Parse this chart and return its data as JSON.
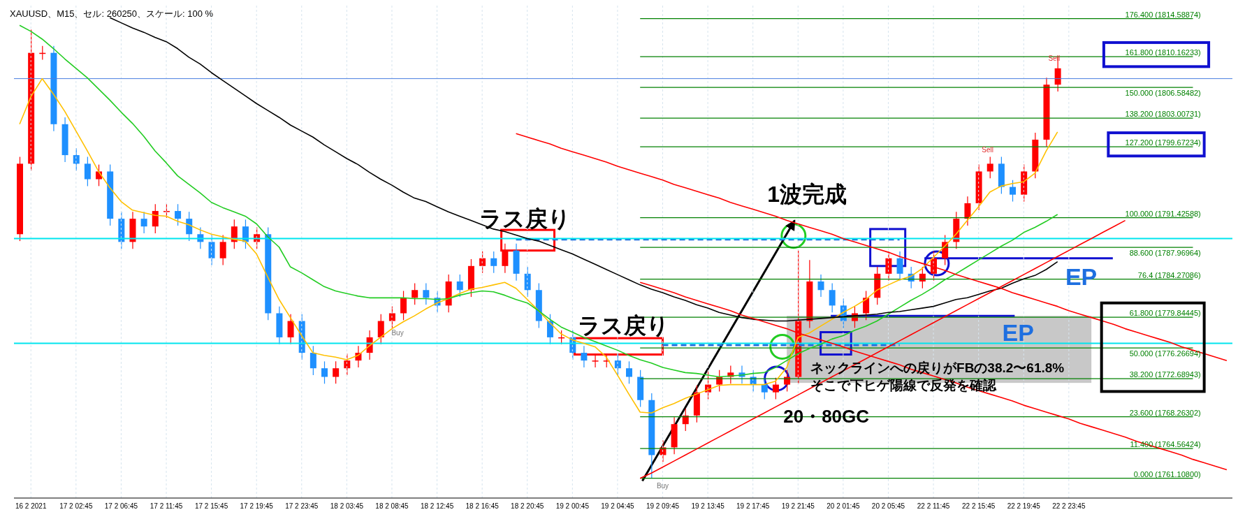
{
  "chart_data": {
    "type": "candlestick",
    "title": "XAUUSD、M15、セル: 260250、スケール: 100 %",
    "categories": [
      null,
      "16 2 2021",
      null,
      null,
      null,
      "17 2 02:45",
      null,
      null,
      null,
      "17 2 06:45",
      null,
      null,
      null,
      "17 2 11:45",
      null,
      null,
      null,
      "17 2 15:45",
      null,
      null,
      null,
      "17 2 19:45",
      null,
      null,
      null,
      "17 2 23:45",
      null,
      null,
      null,
      "18 2 03:45",
      null,
      null,
      null,
      "18 2 08:45",
      null,
      null,
      null,
      "18 2 12:45",
      null,
      null,
      null,
      "18 2 16:45",
      null,
      null,
      null,
      "18 2 20:45",
      null,
      null,
      null,
      "19 2 00:45",
      null,
      null,
      null,
      "19 2 04:45",
      null,
      null,
      null,
      "19 2 09:45",
      null,
      null,
      null,
      "19 2 13:45",
      null,
      null,
      null,
      "19 2 17:45",
      null,
      null,
      null,
      "19 2 21:45",
      null,
      null,
      null,
      "20 2 01:45",
      null,
      null,
      null,
      "20 2 05:45",
      null,
      null,
      null,
      "22 2 11:45",
      null,
      null,
      null,
      "22 2 15:45",
      null,
      null,
      null,
      "22 2 19:45",
      null,
      null,
      null,
      "22 2 23:45",
      null,
      null,
      null,
      null,
      null,
      null,
      null,
      null,
      null,
      null,
      null,
      null,
      null,
      null
    ],
    "ohlc": [
      [
        1789.5,
        1798.5,
        1788.7,
        1797.7
      ],
      [
        1797.7,
        1813.3,
        1796.9,
        1810.6
      ],
      [
        1810.6,
        1811.4,
        1809.8,
        1810.6
      ],
      [
        1810.6,
        1811.4,
        1801.5,
        1802.3
      ],
      [
        1802.3,
        1803.1,
        1797.9,
        1798.7
      ],
      [
        1798.7,
        1799.5,
        1796.9,
        1797.7
      ],
      [
        1797.7,
        1798.5,
        1795.1,
        1795.9
      ],
      [
        1795.9,
        1797.6,
        1795.1,
        1796.8
      ],
      [
        1796.8,
        1797.6,
        1790.5,
        1791.3
      ],
      [
        1791.3,
        1792.1,
        1787.8,
        1788.6
      ],
      [
        1788.6,
        1792.1,
        1787.8,
        1791.3
      ],
      [
        1791.3,
        1792.1,
        1789.6,
        1790.4
      ],
      [
        1790.4,
        1793.0,
        1789.6,
        1792.2
      ],
      [
        1792.2,
        1793.0,
        1791.4,
        1792.2
      ],
      [
        1792.2,
        1793.0,
        1790.5,
        1791.3
      ],
      [
        1791.3,
        1792.1,
        1788.7,
        1789.5
      ],
      [
        1789.5,
        1790.3,
        1787.8,
        1788.6
      ],
      [
        1788.6,
        1789.4,
        1785.9,
        1786.7
      ],
      [
        1786.7,
        1789.4,
        1785.9,
        1788.6
      ],
      [
        1788.6,
        1791.2,
        1787.8,
        1790.4
      ],
      [
        1790.4,
        1791.2,
        1787.8,
        1788.6
      ],
      [
        1788.6,
        1790.3,
        1787.8,
        1789.5
      ],
      [
        1789.5,
        1790.3,
        1779.5,
        1780.3
      ],
      [
        1780.3,
        1781.1,
        1776.7,
        1777.5
      ],
      [
        1777.5,
        1780.2,
        1776.7,
        1779.4
      ],
      [
        1779.4,
        1780.2,
        1774.9,
        1775.7
      ],
      [
        1775.7,
        1776.5,
        1773.1,
        1773.9
      ],
      [
        1773.9,
        1774.7,
        1772.1,
        1772.9
      ],
      [
        1772.9,
        1774.7,
        1772.1,
        1773.9
      ],
      [
        1773.9,
        1775.6,
        1773.1,
        1774.8
      ],
      [
        1774.8,
        1776.5,
        1774.0,
        1775.7
      ],
      [
        1775.7,
        1778.3,
        1774.9,
        1777.5
      ],
      [
        1777.5,
        1780.2,
        1776.7,
        1779.4
      ],
      [
        1779.4,
        1781.1,
        1778.6,
        1780.3
      ],
      [
        1780.3,
        1782.9,
        1779.5,
        1782.1
      ],
      [
        1782.1,
        1783.8,
        1781.3,
        1783.0
      ],
      [
        1783.0,
        1783.8,
        1781.3,
        1782.1
      ],
      [
        1782.1,
        1782.9,
        1780.4,
        1781.2
      ],
      [
        1781.2,
        1784.8,
        1780.4,
        1784.0
      ],
      [
        1784.0,
        1784.8,
        1782.2,
        1783.0
      ],
      [
        1783.0,
        1786.6,
        1782.2,
        1785.8
      ],
      [
        1785.8,
        1787.5,
        1785.0,
        1786.7
      ],
      [
        1786.7,
        1787.5,
        1785.0,
        1785.8
      ],
      [
        1785.8,
        1788.4,
        1785.0,
        1787.6
      ],
      [
        1787.6,
        1788.4,
        1784.1,
        1784.9
      ],
      [
        1784.9,
        1785.7,
        1782.2,
        1783.0
      ],
      [
        1783.0,
        1783.8,
        1778.6,
        1779.4
      ],
      [
        1779.4,
        1780.2,
        1776.7,
        1777.5
      ],
      [
        1777.5,
        1778.3,
        1776.7,
        1777.5
      ],
      [
        1777.5,
        1778.3,
        1774.9,
        1775.7
      ],
      [
        1775.7,
        1776.5,
        1774.0,
        1774.8
      ],
      [
        1774.8,
        1775.6,
        1774.0,
        1774.8
      ],
      [
        1774.8,
        1775.6,
        1774.0,
        1774.8
      ],
      [
        1774.8,
        1775.6,
        1773.1,
        1773.9
      ],
      [
        1773.9,
        1774.7,
        1772.1,
        1772.9
      ],
      [
        1772.9,
        1773.7,
        1769.4,
        1770.2
      ],
      [
        1770.2,
        1771.0,
        1761.1,
        1763.8
      ],
      [
        1763.8,
        1765.5,
        1763.0,
        1764.7
      ],
      [
        1764.7,
        1768.2,
        1763.9,
        1767.4
      ],
      [
        1767.4,
        1769.2,
        1766.6,
        1768.4
      ],
      [
        1768.4,
        1771.9,
        1767.6,
        1771.1
      ],
      [
        1771.1,
        1773.6,
        1770.3,
        1772.0
      ],
      [
        1772.0,
        1773.7,
        1771.2,
        1772.9
      ],
      [
        1772.9,
        1774.2,
        1772.1,
        1773.4
      ],
      [
        1773.4,
        1774.2,
        1772.1,
        1772.9
      ],
      [
        1772.9,
        1773.7,
        1771.2,
        1772.0
      ],
      [
        1772.0,
        1772.8,
        1770.3,
        1771.1
      ],
      [
        1771.1,
        1772.8,
        1770.3,
        1772.0
      ],
      [
        1772.0,
        1773.7,
        1771.2,
        1772.9
      ],
      [
        1772.9,
        1787.6,
        1772.1,
        1779.4
      ],
      [
        1779.4,
        1786.5,
        1778.6,
        1784.0
      ],
      [
        1784.0,
        1784.8,
        1782.2,
        1783.0
      ],
      [
        1783.0,
        1783.8,
        1780.4,
        1781.2
      ],
      [
        1781.2,
        1782.0,
        1778.6,
        1779.4
      ],
      [
        1779.4,
        1781.1,
        1778.6,
        1780.3
      ],
      [
        1780.3,
        1782.9,
        1779.5,
        1782.1
      ],
      [
        1782.1,
        1785.7,
        1781.3,
        1784.9
      ],
      [
        1784.9,
        1787.5,
        1784.1,
        1786.7
      ],
      [
        1786.7,
        1787.5,
        1784.1,
        1784.9
      ],
      [
        1784.9,
        1785.7,
        1783.2,
        1784.0
      ],
      [
        1784.0,
        1785.7,
        1783.2,
        1784.9
      ],
      [
        1784.9,
        1787.5,
        1784.1,
        1786.7
      ],
      [
        1786.7,
        1789.4,
        1785.9,
        1788.6
      ],
      [
        1788.6,
        1792.1,
        1787.8,
        1791.3
      ],
      [
        1791.3,
        1793.9,
        1790.5,
        1793.1
      ],
      [
        1793.1,
        1797.6,
        1792.3,
        1796.8
      ],
      [
        1796.8,
        1798.5,
        1796.0,
        1797.7
      ],
      [
        1797.7,
        1798.5,
        1794.2,
        1795.0
      ],
      [
        1795.0,
        1795.8,
        1793.3,
        1794.1
      ],
      [
        1794.1,
        1797.6,
        1793.3,
        1796.8
      ],
      [
        1796.8,
        1801.3,
        1796.0,
        1800.5
      ],
      [
        1800.5,
        1807.7,
        1799.7,
        1806.9
      ],
      [
        1806.9,
        1810.2,
        1806.1,
        1808.8
      ],
      null,
      null,
      null,
      null,
      null,
      null,
      null,
      null,
      null,
      null,
      null,
      null,
      null,
      null,
      null
    ],
    "colors": [
      "#ff0000",
      "#ff0000",
      "#ff0000",
      "#1e90ff",
      "#1e90ff",
      "#1e90ff",
      "#1e90ff",
      "#ff0000",
      "#1e90ff",
      "#1e90ff",
      "#ff0000",
      "#1e90ff",
      "#ff0000",
      "#ff0000",
      "#1e90ff",
      "#1e90ff",
      "#1e90ff",
      "#1e90ff",
      "#ff0000",
      "#ff0000",
      "#1e90ff",
      "#ff0000",
      "#1e90ff",
      "#1e90ff",
      "#ff0000",
      "#1e90ff",
      "#1e90ff",
      "#1e90ff",
      "#ff0000",
      "#ff0000",
      "#ff0000",
      "#ff0000",
      "#ff0000",
      "#ff0000",
      "#ff0000",
      "#ff0000",
      "#1e90ff",
      "#1e90ff",
      "#ff0000",
      "#1e90ff",
      "#ff0000",
      "#ff0000",
      "#1e90ff",
      "#ff0000",
      "#1e90ff",
      "#1e90ff",
      "#1e90ff",
      "#1e90ff",
      "#ff0000",
      "#1e90ff",
      "#1e90ff",
      "#ff0000",
      "#ff0000",
      "#1e90ff",
      "#1e90ff",
      "#1e90ff",
      "#1e90ff",
      "#ff0000",
      "#ff0000",
      "#ff0000",
      "#ff0000",
      "#ff0000",
      "#ff0000",
      "#ff0000",
      "#1e90ff",
      "#1e90ff",
      "#1e90ff",
      "#ff0000",
      "#ff0000",
      "#ff0000",
      "#ff0000",
      "#1e90ff",
      "#1e90ff",
      "#1e90ff",
      "#ff0000",
      "#ff0000",
      "#ff0000",
      "#ff0000",
      "#1e90ff",
      "#1e90ff",
      "#ff0000",
      "#ff0000",
      "#ff0000",
      "#ff0000",
      "#ff0000",
      "#ff0000",
      "#ff0000",
      "#1e90ff",
      "#1e90ff",
      "#ff0000",
      "#ff0000",
      "#ff0000",
      "#ff0000",
      null,
      null,
      null,
      null,
      null,
      null,
      null,
      null,
      null,
      null,
      null,
      null,
      null,
      null,
      null
    ],
    "series": [
      {
        "type": "line",
        "color": "#ffc000",
        "values": [
          1802.3,
          1805.5,
          1807.6,
          1805.8,
          1803.8,
          1801.5,
          1799.2,
          1796.8,
          1794.9,
          1793.3,
          1792.3,
          1792.0,
          1791.7,
          1791.6,
          1791.0,
          1790.6,
          1790.0,
          1789.5,
          1789.2,
          1788.9,
          1788.7,
          1787.2,
          1784.5,
          1781.9,
          1779.8,
          1777.7,
          1775.7,
          1775.4,
          1775.2,
          1774.9,
          1775.4,
          1776.5,
          1777.5,
          1778.5,
          1779.3,
          1780.0,
          1780.8,
          1781.5,
          1782.0,
          1782.6,
          1783.1,
          1783.3,
          1783.6,
          1783.9,
          1783.2,
          1781.9,
          1780.6,
          1779.2,
          1777.9,
          1777.2,
          1776.8,
          1776.4,
          1775.2,
          1773.1,
          1770.9,
          1768.8,
          1768.7,
          1769.3,
          1769.8,
          1770.4,
          1770.9,
          1771.4,
          1771.9,
          1772.0,
          1772.0,
          1772.0,
          1772.0,
          1772.4,
          1774.0,
          1777.5,
          1778.0,
          1778.8,
          1779.6,
          1780.4,
          1781.1,
          1781.9,
          1783.0,
          1783.6,
          1784.2,
          1784.6,
          1785.5,
          1786.8,
          1788.1,
          1789.5,
          1791.1,
          1792.7,
          1794.4,
          1795.1,
          1795.4,
          1795.6,
          1796.6,
          1799.2,
          1801.4,
          null,
          null,
          null,
          null,
          null,
          null,
          null,
          null,
          null,
          null,
          null,
          null,
          null,
          null,
          null
        ]
      },
      {
        "type": "line",
        "color": "#22cc22",
        "values": [
          1813.8,
          1813.1,
          1812.2,
          1811.1,
          1809.9,
          1808.8,
          1807.7,
          1806.4,
          1805.1,
          1803.7,
          1802.4,
          1800.9,
          1799.2,
          1797.8,
          1796.3,
          1795.3,
          1794.3,
          1793.2,
          1792.6,
          1792.1,
          1791.6,
          1790.7,
          1789.2,
          1788.0,
          1785.7,
          1785.0,
          1784.2,
          1783.4,
          1782.9,
          1782.6,
          1782.3,
          1782.1,
          1782.1,
          1782.1,
          1782.1,
          1782.0,
          1782.0,
          1781.9,
          1782.0,
          1782.4,
          1782.7,
          1782.9,
          1782.8,
          1782.4,
          1781.9,
          1781.5,
          1780.6,
          1779.6,
          1778.7,
          1778.1,
          1777.5,
          1777.0,
          1776.5,
          1776.0,
          1775.4,
          1774.9,
          1774.5,
          1774.0,
          1773.7,
          1773.4,
          1773.3,
          1773.1,
          1772.9,
          1773.0,
          1773.1,
          1773.3,
          1773.4,
          1774.0,
          1774.8,
          1775.6,
          1776.2,
          1776.7,
          1777.3,
          1777.7,
          1778.3,
          1778.8,
          1779.4,
          1780.2,
          1781.0,
          1781.8,
          1782.5,
          1783.3,
          1784.2,
          1784.9,
          1785.7,
          1786.5,
          1787.3,
          1788.1,
          1788.8,
          1789.7,
          1790.3,
          1791.0,
          1791.8,
          null,
          null,
          null,
          null,
          null,
          null,
          null,
          null,
          null,
          null,
          null,
          null,
          null,
          null,
          null
        ]
      },
      {
        "type": "line",
        "color": "#000000",
        "values": [
          null,
          null,
          null,
          null,
          null,
          null,
          null,
          null,
          1814.7,
          1814.1,
          1813.5,
          1813.0,
          1812.4,
          1811.9,
          1811.1,
          1810.1,
          1809.3,
          1808.3,
          1807.4,
          1806.5,
          1805.6,
          1804.7,
          1803.9,
          1803.1,
          1802.2,
          1801.5,
          1800.8,
          1799.9,
          1799.1,
          1798.3,
          1797.6,
          1796.7,
          1795.9,
          1795.2,
          1794.4,
          1793.7,
          1793.3,
          1792.7,
          1792.1,
          1791.6,
          1791.1,
          1790.6,
          1790.1,
          1789.8,
          1789.4,
          1789.0,
          1788.7,
          1788.2,
          1787.7,
          1787.2,
          1786.6,
          1786.0,
          1785.4,
          1784.8,
          1784.2,
          1783.6,
          1783.1,
          1782.7,
          1782.2,
          1781.8,
          1781.3,
          1780.9,
          1780.4,
          1780.1,
          1779.8,
          1779.6,
          1779.5,
          1779.4,
          1779.4,
          1779.5,
          1779.6,
          1779.7,
          1779.8,
          1779.9,
          1780.0,
          1780.1,
          1780.2,
          1780.4,
          1780.5,
          1780.7,
          1780.9,
          1781.1,
          1781.5,
          1781.9,
          1782.1,
          1782.5,
          1782.9,
          1783.2,
          1783.8,
          1784.3,
          1784.7,
          1785.4,
          1786.3,
          null,
          null,
          null,
          null,
          null,
          null,
          null,
          null,
          null,
          null,
          null,
          null,
          null,
          null,
          null
        ]
      },
      {
        "type": "line",
        "color": "#ff0000",
        "values": [
          null,
          null,
          null,
          null,
          null,
          null,
          null,
          null,
          null,
          null,
          null,
          null,
          null,
          null,
          null,
          null,
          null,
          null,
          null,
          null,
          null,
          null,
          null,
          null,
          null,
          null,
          null,
          null,
          null,
          null,
          null,
          null,
          null,
          null,
          null,
          null,
          null,
          null,
          null,
          null,
          null,
          null,
          null,
          null,
          1801.2,
          1800.8,
          1800.4,
          1800.0,
          1799.5,
          1799.1,
          1798.7,
          1798.3,
          1797.9,
          1797.4,
          1797.0,
          1796.6,
          1796.2,
          1795.8,
          1795.3,
          1794.9,
          1794.5,
          1794.1,
          1793.7,
          1793.2,
          1792.8,
          1792.4,
          1792.0,
          1791.6,
          1791.1,
          1790.7,
          1790.3,
          1789.9,
          1789.5,
          1789.0,
          1788.6,
          1788.2,
          1787.8,
          1787.4,
          1786.9,
          1786.5,
          1786.1,
          1785.7,
          1785.3,
          1784.8,
          1784.4,
          1784.0,
          1783.6,
          1783.2,
          1782.7,
          1782.3,
          1781.9,
          1781.5,
          1781.1,
          1780.6,
          1780.2,
          1779.8,
          1779.4,
          1779.0,
          1778.5,
          1778.1,
          1777.7,
          1777.3,
          1776.9,
          1776.4,
          1776.0,
          1775.6,
          1775.2,
          1774.8
        ]
      },
      {
        "type": "line",
        "color": "#ff0000",
        "values": [
          null,
          null,
          null,
          null,
          null,
          null,
          null,
          null,
          null,
          null,
          null,
          null,
          null,
          null,
          null,
          null,
          null,
          null,
          null,
          null,
          null,
          null,
          null,
          null,
          null,
          null,
          null,
          null,
          null,
          null,
          null,
          null,
          null,
          null,
          null,
          null,
          null,
          null,
          null,
          null,
          null,
          null,
          null,
          null,
          null,
          null,
          null,
          null,
          null,
          null,
          null,
          null,
          null,
          null,
          null,
          1783.9,
          1783.5,
          1783.1,
          1782.7,
          1782.2,
          1781.8,
          1781.4,
          1781.0,
          1780.6,
          1780.1,
          1779.7,
          1779.3,
          1778.9,
          1778.5,
          1778.0,
          1777.6,
          1777.2,
          1776.8,
          1776.4,
          1775.9,
          1775.5,
          1775.1,
          1774.7,
          1774.3,
          1773.8,
          1773.4,
          1773.0,
          1772.6,
          1772.2,
          1771.7,
          1771.3,
          1770.9,
          1770.5,
          1770.1,
          1769.6,
          1769.2,
          1768.8,
          1768.4,
          1768.0,
          1767.5,
          1767.1,
          1766.7,
          1766.3,
          1765.9,
          1765.4,
          1765.0,
          1764.6,
          1764.2,
          1763.8,
          1763.3,
          1762.9,
          1762.5,
          1762.1
        ]
      },
      {
        "type": "line",
        "color": "#ff0000",
        "values": [
          null,
          null,
          null,
          null,
          null,
          null,
          null,
          null,
          null,
          null,
          null,
          null,
          null,
          null,
          null,
          null,
          null,
          null,
          null,
          null,
          null,
          null,
          null,
          null,
          null,
          null,
          null,
          null,
          null,
          null,
          null,
          null,
          null,
          null,
          null,
          null,
          null,
          null,
          null,
          null,
          null,
          null,
          null,
          null,
          null,
          null,
          null,
          null,
          null,
          null,
          null,
          null,
          null,
          null,
          null,
          1761.1,
          1761.7,
          1762.4,
          1763.1,
          1763.8,
          1764.5,
          1765.2,
          1765.9,
          1766.6,
          1767.3,
          1768.0,
          1768.7,
          1769.4,
          1770.1,
          1770.8,
          1771.5,
          1772.2,
          1772.9,
          1773.6,
          1774.3,
          1775.0,
          1775.7,
          1776.4,
          1777.1,
          1777.8,
          1778.5,
          1779.2,
          1779.9,
          1780.6,
          1781.3,
          1782.0,
          1782.7,
          1783.4,
          1784.1,
          1784.8,
          1785.5,
          1786.2,
          1786.9,
          1787.6,
          1788.3,
          1789.0,
          1789.7,
          1790.4,
          1791.1,
          null,
          null,
          null,
          null,
          null,
          null,
          null,
          null,
          null
        ]
      }
    ],
    "ylim": [
      1758.8,
      1816.1
    ],
    "tick_labels": "x",
    "grid": "x",
    "legend": false,
    "ref_lines": [
      {
        "axis": "y",
        "value": 1814.58874,
        "label": "176.400 (1814.58874)",
        "color": "#008000"
      },
      {
        "axis": "y",
        "value": 1810.16233,
        "label": "161.800 (1810.16233)",
        "color": "#008000"
      },
      {
        "axis": "y",
        "value": 1806.58482,
        "label": "150.000 (1806.58482)",
        "color": "#008000"
      },
      {
        "axis": "y",
        "value": 1803.00731,
        "label": "138.200 (1803.00731)",
        "color": "#008000"
      },
      {
        "axis": "y",
        "value": 1799.67234,
        "label": "127.200 (1799.67234)",
        "color": "#008000"
      },
      {
        "axis": "y",
        "value": 1791.42588,
        "label": "100.000 (1791.42588)",
        "color": "#008000"
      },
      {
        "axis": "y",
        "value": 1787.96964,
        "label": "88.600 (1787.96964)",
        "color": "#008000"
      },
      {
        "axis": "y",
        "value": 1784.27086,
        "label": "76.4 (1784.27086)",
        "color": "#008000"
      },
      {
        "axis": "y",
        "value": 1779.84445,
        "label": "61.800 (1779.84445)",
        "color": "#008000"
      },
      {
        "axis": "y",
        "value": 1776.26694,
        "label": "50.000 (1776.26694)",
        "color": "#008000"
      },
      {
        "axis": "y",
        "value": 1772.68943,
        "label": "38.200 (1772.68943)",
        "color": "#008000"
      },
      {
        "axis": "y",
        "value": 1768.26302,
        "label": "23.600 (1768.26302)",
        "color": "#008000"
      },
      {
        "axis": "y",
        "value": 1764.56424,
        "label": "11.400 (1764.56424)",
        "color": "#008000"
      },
      {
        "axis": "y",
        "value": 1761.108,
        "label": "0.000 (1761.10800)",
        "color": "#008000"
      },
      {
        "axis": "y",
        "value": 1807.6,
        "color": "#4a7fe0"
      },
      {
        "axis": "y",
        "value": 1788.9,
        "color": "#1e6fe0",
        "line_style": "dashed"
      },
      {
        "axis": "y",
        "value": 1776.6,
        "color": "#1e6fe0",
        "line_style": "dashed"
      },
      {
        "axis": "y",
        "value": 1789.0,
        "color": "#00e5ee"
      },
      {
        "axis": "y",
        "value": 1776.8,
        "color": "#00e5ee"
      }
    ],
    "bands": [
      {
        "axis": "y",
        "from": 1772.2,
        "to": 1780.0,
        "color": "#c8c8c8"
      }
    ],
    "annotations": [
      {
        "text": "ラス戻り",
        "y": 1788.9
      },
      {
        "text": "ラス戻り",
        "y": 1776.6
      },
      "1波完成",
      "ネックラインへの戻りがFBの38.2〜61.8%",
      "そこで下ヒゲ陽線で反発を確認",
      "20・80GC",
      "EP",
      {
        "text": "EP",
        "y": 1780.0
      },
      {
        "text": "Buy",
        "x": "19 2 09:45",
        "y": 1761.1
      },
      "Buy",
      "Sell",
      "Sell"
    ]
  }
}
